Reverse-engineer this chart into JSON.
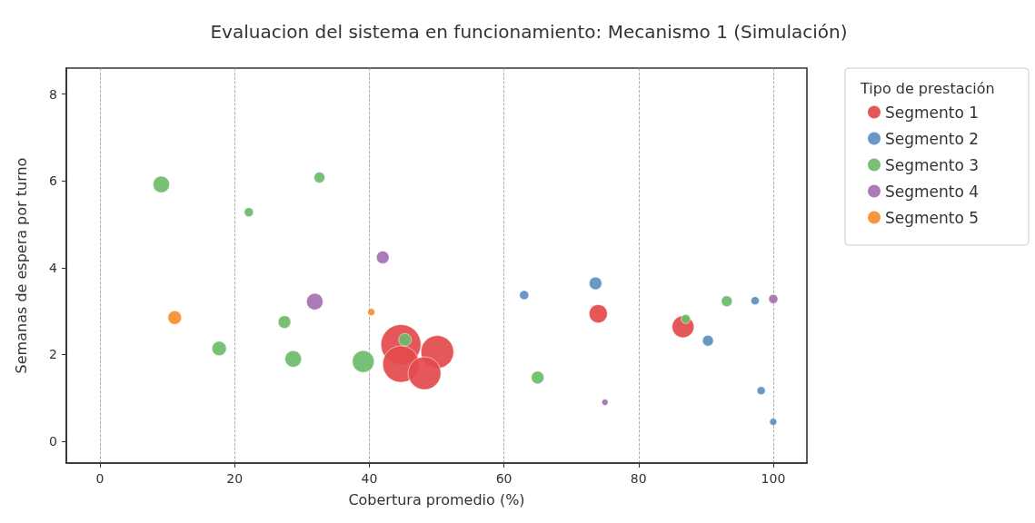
{
  "chart_data": {
    "type": "bubble",
    "title": "Evaluacion del sistema en funcionamiento: Mecanismo 1 (Simulación)",
    "xlabel": "Cobertura promedio (%)",
    "ylabel": "Semanas de espera por turno",
    "legend_title": "Tipo de prestación",
    "xlim": [
      -5,
      105
    ],
    "xticks": [
      0,
      20,
      40,
      60,
      80,
      100
    ],
    "ylim": [
      -0.5,
      8.6
    ],
    "yticks": [
      0,
      2,
      4,
      6,
      8
    ],
    "grid": "x",
    "legend": "top right",
    "marker": "circle",
    "series": [
      {
        "name": "Segmento 1",
        "color": "#e34a4b",
        "x": [
          44.7,
          44.7,
          50.1,
          48.2,
          74.0,
          86.6
        ],
        "values": [
          2.23,
          1.78,
          2.06,
          1.57,
          2.94,
          2.64
        ],
        "sizes": [
          1,
          0.83,
          0.67,
          0.67,
          0.21,
          0.3
        ]
      },
      {
        "name": "Segmento 2",
        "color": "#5a8fc1",
        "x": [
          63.0,
          73.6,
          90.3,
          97.3,
          98.2,
          100
        ],
        "values": [
          3.37,
          3.64,
          2.32,
          3.24,
          1.17,
          0.45
        ],
        "sizes": [
          0.052,
          0.1,
          0.074,
          0.042,
          0.042,
          0.033
        ]
      },
      {
        "name": "Segmento 3",
        "color": "#6cbb69",
        "x": [
          9.1,
          32.6,
          22.1,
          27.4,
          17.7,
          28.7,
          39.1,
          45.3,
          65.0,
          87.0,
          93.1
        ],
        "values": [
          5.92,
          6.08,
          5.28,
          2.75,
          2.14,
          1.9,
          1.84,
          2.34,
          1.47,
          2.82,
          3.23
        ],
        "sizes": [
          0.17,
          0.074,
          0.052,
          0.1,
          0.13,
          0.17,
          0.3,
          0.1,
          0.1,
          0.052,
          0.074
        ]
      },
      {
        "name": "Segmento 4",
        "color": "#a66fb3",
        "x": [
          42.0,
          31.9,
          75.0,
          100
        ],
        "values": [
          4.24,
          3.22,
          0.9,
          3.28
        ],
        "sizes": [
          0.1,
          0.17,
          0.025,
          0.052
        ]
      },
      {
        "name": "Segmento 5",
        "color": "#f68f2f",
        "x": [
          11.1,
          40.3
        ],
        "values": [
          2.85,
          2.98
        ],
        "sizes": [
          0.116,
          0.033
        ]
      }
    ]
  }
}
